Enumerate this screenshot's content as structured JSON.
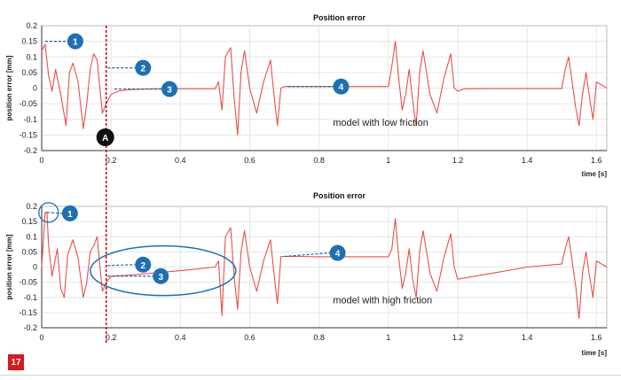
{
  "figure_number": "17",
  "colors": {
    "curve": "#e8504a",
    "marker_line": "#c0141a",
    "callout": "#1f6fb2",
    "callout_leader": "#1f5fa0",
    "grid": "#e6e6e6",
    "axis": "#333333",
    "marker_a": "#111111"
  },
  "time_marker": {
    "label": "A",
    "x": 0.186
  },
  "chart_data": [
    {
      "type": "line",
      "title": "Position error",
      "xlabel": "time [s]",
      "ylabel": "position error [mm]",
      "xlim": [
        0,
        1.63
      ],
      "ylim": [
        -0.2,
        0.2
      ],
      "xticks": [
        0,
        0.2,
        0.4,
        0.6,
        0.8,
        1,
        1.2,
        1.4,
        1.6
      ],
      "xtick_labels": [
        "0",
        "0.2",
        "0.4",
        "0.6",
        "0.8",
        "1",
        "1.2",
        "1.4",
        "1.6"
      ],
      "yticks": [
        0.2,
        0.15,
        0.1,
        0.05,
        0,
        -0.05,
        -0.1,
        -0.15,
        -0.2
      ],
      "ytick_labels": [
        "0.2",
        "0.15",
        "0.1",
        "0.05",
        "0",
        "-0.05",
        "-0.1",
        "-0.15",
        "-0.2"
      ],
      "grid": true,
      "annotation": "model with low friction",
      "series": [
        {
          "x": [
            0,
            0.01,
            0.02,
            0.03,
            0.04,
            0.055,
            0.07,
            0.08,
            0.09,
            0.105,
            0.12,
            0.13,
            0.14,
            0.15,
            0.16,
            0.175,
            0.186,
            0.2,
            0.22,
            0.25,
            0.3,
            0.35,
            0.4,
            0.45,
            0.5,
            0.51,
            0.52,
            0.53,
            0.545,
            0.555,
            0.565,
            0.575,
            0.585,
            0.6,
            0.62,
            0.64,
            0.66,
            0.67,
            0.68,
            0.69,
            0.7,
            0.72,
            0.8,
            0.9,
            1.0,
            1.01,
            1.02,
            1.03,
            1.04,
            1.05,
            1.06,
            1.07,
            1.08,
            1.09,
            1.1,
            1.12,
            1.14,
            1.16,
            1.18,
            1.19,
            1.2,
            1.22,
            1.3,
            1.4,
            1.5,
            1.51,
            1.52,
            1.53,
            1.54,
            1.55,
            1.56,
            1.57,
            1.58,
            1.59,
            1.6,
            1.63
          ],
          "y": [
            0.12,
            0.14,
            0.04,
            -0.01,
            0.06,
            -0.02,
            -0.12,
            0.05,
            0.08,
            0.02,
            -0.13,
            -0.05,
            0.06,
            0.11,
            0.09,
            -0.08,
            -0.05,
            -0.02,
            -0.01,
            -0.005,
            -0.003,
            -0.002,
            -0.002,
            -0.002,
            -0.002,
            0.02,
            -0.07,
            0.1,
            0.13,
            -0.03,
            -0.15,
            0.05,
            0.12,
            0.0,
            -0.08,
            0.02,
            0.09,
            -0.02,
            -0.12,
            0.0,
            0.005,
            0.005,
            0.005,
            0.005,
            0.005,
            0.07,
            0.15,
            0.03,
            -0.07,
            -0.02,
            0.06,
            -0.04,
            -0.12,
            0.05,
            0.12,
            -0.02,
            -0.08,
            0.03,
            0.11,
            0.0,
            -0.01,
            -0.002,
            -0.001,
            -0.001,
            -0.001,
            0.06,
            0.1,
            0.02,
            -0.06,
            -0.12,
            -0.02,
            0.05,
            -0.03,
            -0.1,
            0.02,
            0.0
          ]
        }
      ],
      "callouts": [
        {
          "number": "1",
          "x": 0.01,
          "y": 0.15
        },
        {
          "number": "2",
          "x": 0.19,
          "y": 0.065
        },
        {
          "number": "3",
          "x": 0.21,
          "y": -0.003
        },
        {
          "number": "4",
          "x": 0.71,
          "y": 0.005
        }
      ]
    },
    {
      "type": "line",
      "title": "Position error",
      "xlabel": "time [s]",
      "ylabel": "position error [mm]",
      "xlim": [
        0,
        1.63
      ],
      "ylim": [
        -0.2,
        0.2
      ],
      "xticks": [
        0,
        0.2,
        0.4,
        0.6,
        0.8,
        1,
        1.2,
        1.4,
        1.6
      ],
      "xtick_labels": [
        "0",
        "0.2",
        "0.4",
        "0.6",
        "0.8",
        "1",
        "1.2",
        "1.4",
        "1.6"
      ],
      "yticks": [
        0.2,
        0.15,
        0.1,
        0.05,
        0,
        -0.05,
        -0.1,
        -0.15,
        -0.2
      ],
      "ytick_labels": [
        "0.2",
        "0.15",
        "0.1",
        "0.05",
        "0",
        "-0.05",
        "-0.1",
        "-0.15",
        "-0.2"
      ],
      "grid": true,
      "annotation": "model with high friction",
      "series": [
        {
          "x": [
            0,
            0.01,
            0.015,
            0.02,
            0.03,
            0.045,
            0.055,
            0.065,
            0.075,
            0.09,
            0.105,
            0.12,
            0.13,
            0.14,
            0.15,
            0.16,
            0.175,
            0.186,
            0.2,
            0.25,
            0.3,
            0.35,
            0.4,
            0.45,
            0.5,
            0.51,
            0.52,
            0.53,
            0.545,
            0.555,
            0.565,
            0.575,
            0.585,
            0.6,
            0.62,
            0.64,
            0.66,
            0.67,
            0.68,
            0.69,
            0.7,
            0.75,
            0.8,
            0.9,
            1.0,
            1.01,
            1.02,
            1.03,
            1.04,
            1.05,
            1.06,
            1.07,
            1.08,
            1.09,
            1.1,
            1.12,
            1.14,
            1.16,
            1.18,
            1.19,
            1.2,
            1.3,
            1.4,
            1.5,
            1.51,
            1.52,
            1.53,
            1.54,
            1.55,
            1.56,
            1.57,
            1.58,
            1.59,
            1.6,
            1.63
          ],
          "y": [
            0.0,
            0.18,
            0.18,
            0.07,
            -0.03,
            0.06,
            -0.07,
            -0.1,
            0.04,
            0.09,
            0.03,
            -0.1,
            -0.05,
            0.05,
            0.07,
            0.1,
            -0.08,
            -0.05,
            -0.03,
            -0.027,
            -0.022,
            -0.017,
            -0.012,
            -0.006,
            0.0,
            0.02,
            -0.16,
            0.1,
            0.13,
            -0.03,
            -0.14,
            0.05,
            0.12,
            0.0,
            -0.08,
            0.02,
            0.09,
            -0.02,
            -0.12,
            0.035,
            0.035,
            0.035,
            0.034,
            0.034,
            0.034,
            0.06,
            0.16,
            0.03,
            -0.07,
            -0.02,
            0.06,
            -0.04,
            -0.1,
            0.05,
            0.12,
            -0.02,
            -0.08,
            0.03,
            0.11,
            0.0,
            -0.04,
            -0.02,
            0.0,
            0.01,
            0.06,
            0.1,
            0.02,
            -0.06,
            -0.17,
            -0.02,
            0.05,
            -0.03,
            -0.1,
            0.02,
            0.0
          ]
        }
      ],
      "callouts": [
        {
          "number": "1",
          "x": 0.015,
          "y": 0.18
        },
        {
          "number": "2",
          "x": 0.19,
          "y": 0.005
        },
        {
          "number": "3",
          "x": 0.19,
          "y": -0.03
        },
        {
          "number": "4",
          "x": 0.7,
          "y": 0.035
        }
      ]
    }
  ]
}
